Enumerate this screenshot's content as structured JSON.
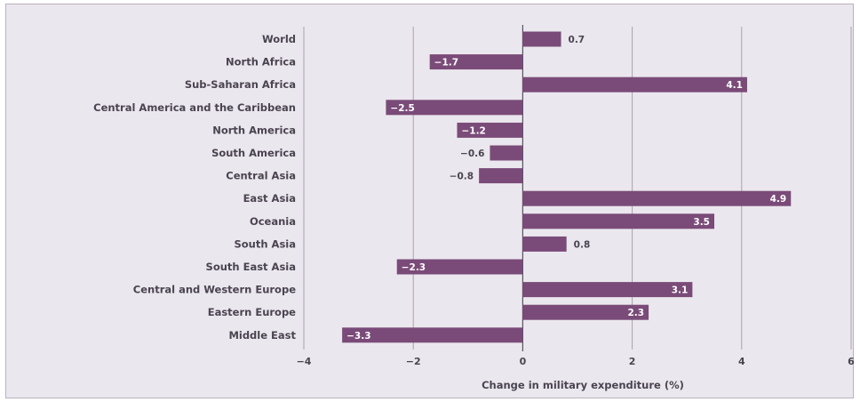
{
  "chart_data": {
    "type": "bar",
    "orientation": "horizontal",
    "categories": [
      "World",
      "North Africa",
      "Sub-Saharan Africa",
      "Central America and the Caribbean",
      "North America",
      "South America",
      "Central Asia",
      "East Asia",
      "Oceania",
      "South Asia",
      "South East Asia",
      "Central and Western Europe",
      "Eastern Europe",
      "Middle East"
    ],
    "values": [
      0.7,
      -1.7,
      4.1,
      -2.5,
      -1.2,
      -0.6,
      -0.8,
      4.9,
      3.5,
      0.8,
      -2.3,
      3.1,
      2.3,
      -3.3
    ],
    "value_labels": [
      "0.7",
      "−1.7",
      "4.1",
      "−2.5",
      "−1.2",
      "−0.6",
      "−0.8",
      "4.9",
      "3.5",
      "0.8",
      "−2.3",
      "3.1",
      "2.3",
      "−3.3"
    ],
    "xlabel": "Change in military expenditure (%)",
    "ylabel": "",
    "xlim": [
      -4,
      6
    ],
    "xticks": [
      -4,
      -2,
      0,
      2,
      4,
      6
    ],
    "xtick_labels": [
      "−4",
      "−2",
      "0",
      "2",
      "4",
      "6"
    ],
    "grid": true,
    "colors": {
      "bar": "#7a4b78",
      "background": "#ebe7ee",
      "grid": "#a9a1ad",
      "text": "#4a4450"
    }
  }
}
